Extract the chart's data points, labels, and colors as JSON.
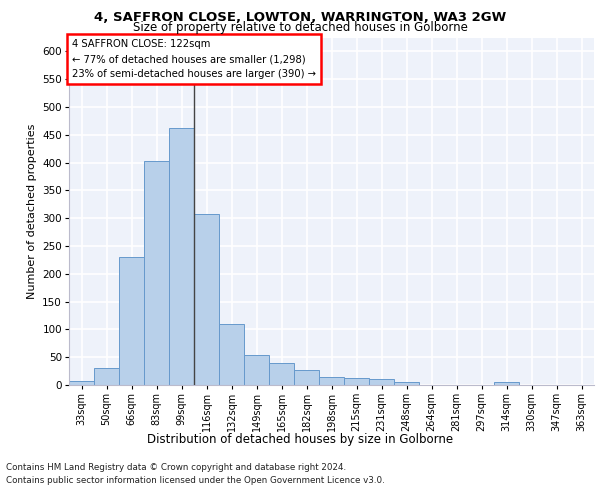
{
  "title_line1": "4, SAFFRON CLOSE, LOWTON, WARRINGTON, WA3 2GW",
  "title_line2": "Size of property relative to detached houses in Golborne",
  "xlabel": "Distribution of detached houses by size in Golborne",
  "ylabel": "Number of detached properties",
  "categories": [
    "33sqm",
    "50sqm",
    "66sqm",
    "83sqm",
    "99sqm",
    "116sqm",
    "132sqm",
    "149sqm",
    "165sqm",
    "182sqm",
    "198sqm",
    "215sqm",
    "231sqm",
    "248sqm",
    "264sqm",
    "281sqm",
    "297sqm",
    "314sqm",
    "330sqm",
    "347sqm",
    "363sqm"
  ],
  "values": [
    7,
    30,
    230,
    403,
    463,
    307,
    110,
    54,
    40,
    27,
    15,
    12,
    10,
    6,
    0,
    0,
    0,
    5,
    0,
    0,
    0
  ],
  "bar_color": "#b8d0ea",
  "bar_edge_color": "#6699cc",
  "annotation_text": "4 SAFFRON CLOSE: 122sqm\n← 77% of detached houses are smaller (1,298)\n23% of semi-detached houses are larger (390) →",
  "ylim": [
    0,
    625
  ],
  "yticks": [
    0,
    50,
    100,
    150,
    200,
    250,
    300,
    350,
    400,
    450,
    500,
    550,
    600
  ],
  "background_color": "#eef2fa",
  "grid_color": "#ffffff",
  "footer_line1": "Contains HM Land Registry data © Crown copyright and database right 2024.",
  "footer_line2": "Contains public sector information licensed under the Open Government Licence v3.0."
}
